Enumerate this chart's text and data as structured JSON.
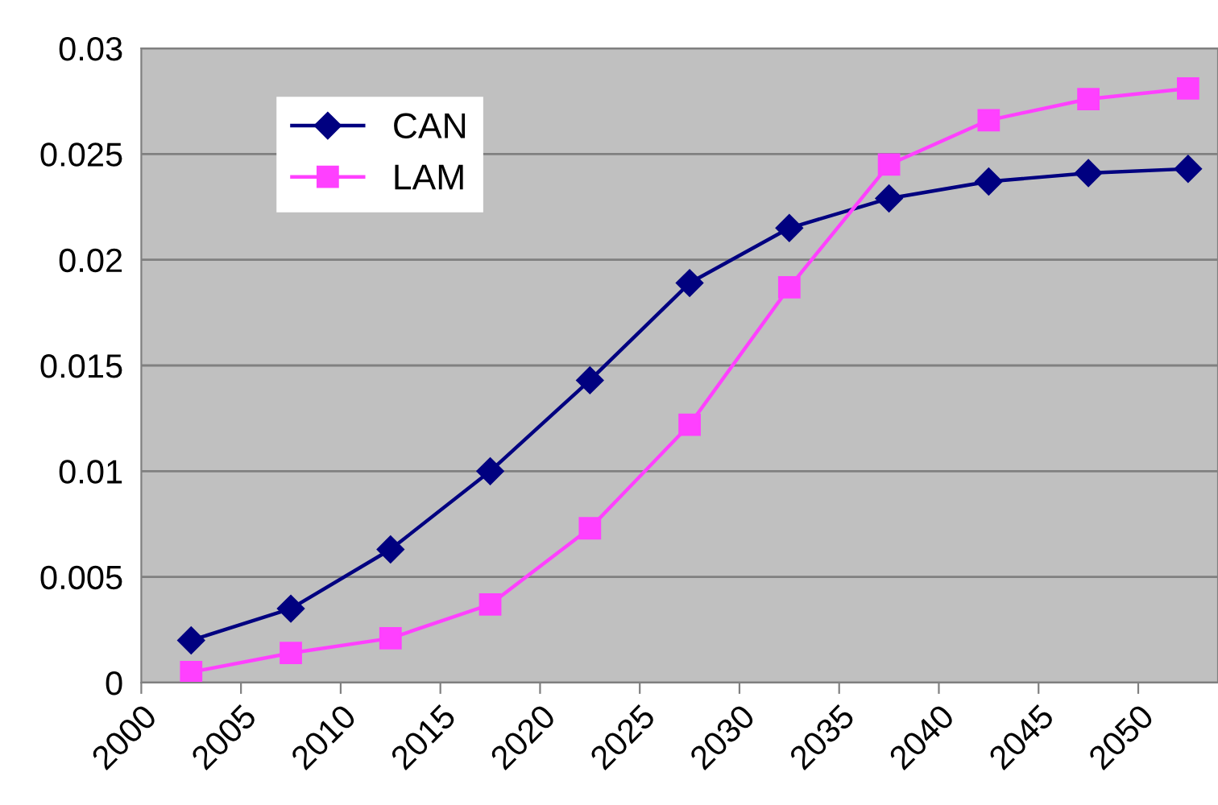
{
  "chart_data": {
    "type": "line",
    "x": [
      2002.5,
      2007.5,
      2012.5,
      2017.5,
      2022.5,
      2027.5,
      2032.5,
      2037.5,
      2042.5,
      2047.5,
      2052.5
    ],
    "series": [
      {
        "name": "CAN",
        "color": "#000080",
        "marker": "diamond",
        "values": [
          0.002,
          0.0035,
          0.0063,
          0.01,
          0.0143,
          0.0189,
          0.0215,
          0.0229,
          0.0237,
          0.0241,
          0.0243
        ]
      },
      {
        "name": "LAM",
        "color": "#ff40ff",
        "marker": "square",
        "values": [
          0.0005,
          0.0014,
          0.0021,
          0.0037,
          0.0073,
          0.0122,
          0.0187,
          0.0245,
          0.0266,
          0.0276,
          0.0281
        ]
      }
    ],
    "xlim": [
      2000,
      2054
    ],
    "xticks": [
      2000,
      2005,
      2010,
      2015,
      2020,
      2025,
      2030,
      2035,
      2040,
      2045,
      2050
    ],
    "ylim": [
      0,
      0.03
    ],
    "yticks": [
      0,
      0.005,
      0.01,
      0.015,
      0.02,
      0.025,
      0.03
    ],
    "grid": "y",
    "legend": "top left",
    "line_style": "solid"
  }
}
